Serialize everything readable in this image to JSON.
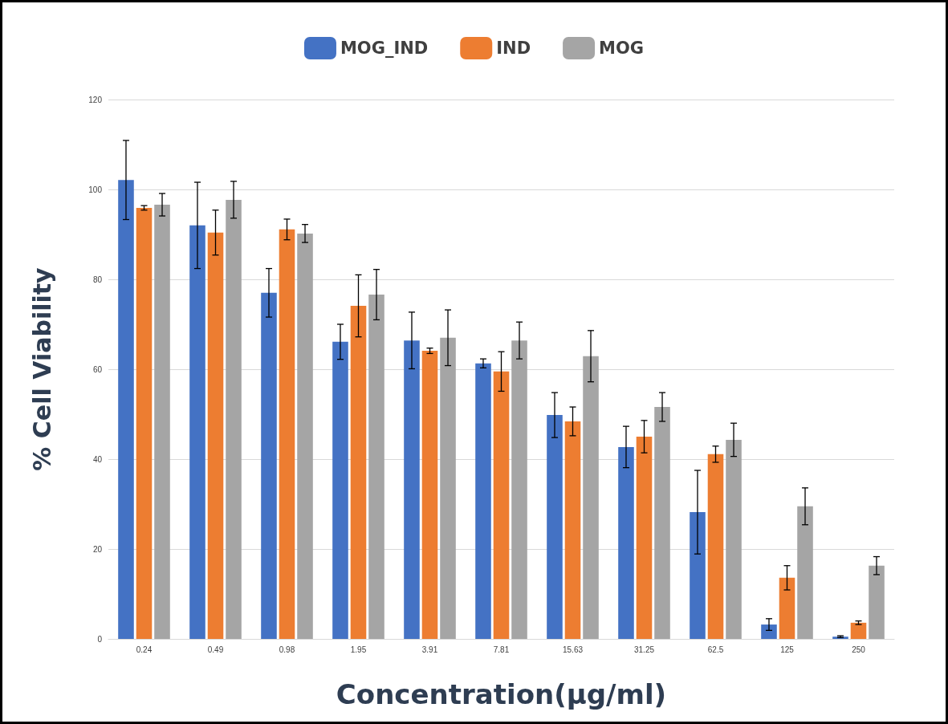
{
  "chart_data": {
    "type": "bar",
    "xlabel": "Concentration(µg/ml)",
    "ylabel": "% Cell Viability",
    "categories": [
      "0.24",
      "0.49",
      "0.98",
      "1.95",
      "3.91",
      "7.81",
      "15.63",
      "31.25",
      "62.5",
      "125",
      "250"
    ],
    "series": [
      {
        "name": "MOG_IND",
        "color": "#4472c4",
        "values": [
          102.1,
          92.0,
          77.0,
          66.1,
          66.4,
          61.3,
          49.8,
          42.7,
          28.2,
          3.2,
          0.5
        ],
        "errors": [
          8.8,
          9.6,
          5.4,
          3.9,
          6.3,
          1.0,
          5.0,
          4.6,
          9.3,
          1.3,
          0.2
        ]
      },
      {
        "name": "IND",
        "color": "#ed7d31",
        "values": [
          95.9,
          90.4,
          91.1,
          74.1,
          64.1,
          59.5,
          48.4,
          45.0,
          41.1,
          13.6,
          3.6
        ],
        "errors": [
          0.5,
          5.0,
          2.3,
          6.9,
          0.6,
          4.4,
          3.2,
          3.6,
          1.8,
          2.7,
          0.4
        ]
      },
      {
        "name": "MOG",
        "color": "#a5a5a5",
        "values": [
          96.6,
          97.7,
          90.2,
          76.6,
          67.0,
          66.4,
          62.9,
          51.6,
          44.3,
          29.5,
          16.3
        ],
        "errors": [
          2.5,
          4.1,
          2.0,
          5.6,
          6.2,
          4.1,
          5.7,
          3.2,
          3.7,
          4.1,
          2.0
        ]
      }
    ],
    "ylim": [
      0,
      120
    ],
    "yticks": [
      0,
      20,
      40,
      60,
      80,
      100,
      120
    ],
    "grid": "y",
    "legend": "top"
  }
}
